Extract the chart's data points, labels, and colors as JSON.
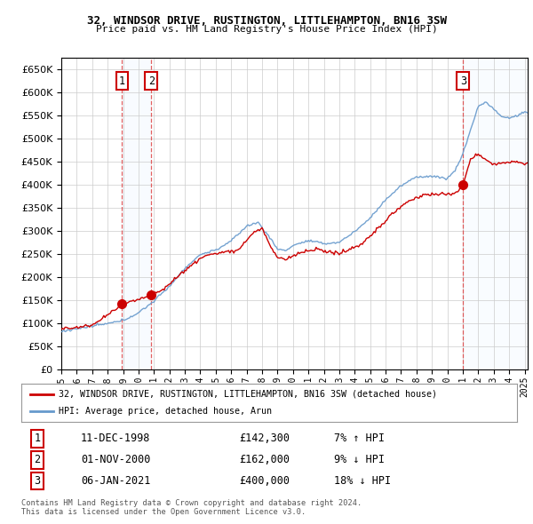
{
  "title1": "32, WINDSOR DRIVE, RUSTINGTON, LITTLEHAMPTON, BN16 3SW",
  "title2": "Price paid vs. HM Land Registry's House Price Index (HPI)",
  "yticks": [
    0,
    50000,
    100000,
    150000,
    200000,
    250000,
    300000,
    350000,
    400000,
    450000,
    500000,
    550000,
    600000,
    650000
  ],
  "xlim_start": 1995.0,
  "xlim_end": 2025.2,
  "ylim_min": 0,
  "ylim_max": 675000,
  "legend_line1": "32, WINDSOR DRIVE, RUSTINGTON, LITTLEHAMPTON, BN16 3SW (detached house)",
  "legend_line2": "HPI: Average price, detached house, Arun",
  "line1_color": "#cc0000",
  "line2_color": "#6699cc",
  "sale_dates": [
    1998.94,
    2000.83,
    2021.02
  ],
  "sale_prices": [
    142300,
    162000,
    400000
  ],
  "sale_labels": [
    "1",
    "2",
    "3"
  ],
  "ann_dates": [
    "11-DEC-1998",
    "01-NOV-2000",
    "06-JAN-2021"
  ],
  "ann_prices": [
    "£142,300",
    "£162,000",
    "£400,000"
  ],
  "ann_hpi": [
    "7% ↑ HPI",
    "9% ↓ HPI",
    "18% ↓ HPI"
  ],
  "footer": "Contains HM Land Registry data © Crown copyright and database right 2024.\nThis data is licensed under the Open Government Licence v3.0.",
  "background_color": "#ffffff",
  "grid_color": "#cccccc",
  "shade_color": "#ddeeff",
  "hpi_anchors_x": [
    1995.0,
    1996.0,
    1997.0,
    1998.0,
    1999.0,
    2000.0,
    2001.0,
    2002.0,
    2003.0,
    2004.0,
    2005.0,
    2006.0,
    2007.0,
    2007.75,
    2008.5,
    2009.0,
    2009.5,
    2010.0,
    2011.0,
    2012.0,
    2013.0,
    2014.0,
    2015.0,
    2016.0,
    2017.0,
    2018.0,
    2019.0,
    2020.0,
    2020.5,
    2021.0,
    2021.5,
    2022.0,
    2022.5,
    2023.0,
    2023.5,
    2024.0,
    2024.5,
    2025.0
  ],
  "hpi_anchors_y": [
    82000,
    87000,
    92000,
    98000,
    106000,
    122000,
    148000,
    180000,
    218000,
    248000,
    258000,
    278000,
    310000,
    318000,
    285000,
    260000,
    256000,
    268000,
    278000,
    272000,
    275000,
    298000,
    328000,
    368000,
    398000,
    418000,
    420000,
    415000,
    432000,
    468000,
    520000,
    570000,
    580000,
    565000,
    548000,
    545000,
    550000,
    558000
  ],
  "price_anchors_x": [
    1995.0,
    1996.0,
    1997.0,
    1998.5,
    1998.94,
    1999.5,
    2000.0,
    2000.83,
    2001.5,
    2002.5,
    2003.5,
    2004.5,
    2005.5,
    2006.5,
    2007.5,
    2008.0,
    2008.5,
    2009.0,
    2009.5,
    2010.5,
    2011.5,
    2012.5,
    2013.5,
    2014.5,
    2015.5,
    2016.5,
    2017.5,
    2018.5,
    2019.5,
    2020.5,
    2021.02,
    2021.5,
    2022.0,
    2022.5,
    2023.0,
    2023.5,
    2024.0,
    2024.5,
    2025.0
  ],
  "price_anchors_y": [
    88000,
    92000,
    96000,
    130000,
    142300,
    148000,
    152000,
    162000,
    172000,
    200000,
    228000,
    248000,
    252000,
    260000,
    298000,
    305000,
    268000,
    240000,
    238000,
    252000,
    258000,
    250000,
    256000,
    272000,
    305000,
    340000,
    365000,
    378000,
    380000,
    380000,
    400000,
    455000,
    468000,
    455000,
    445000,
    448000,
    450000,
    452000,
    448000
  ]
}
